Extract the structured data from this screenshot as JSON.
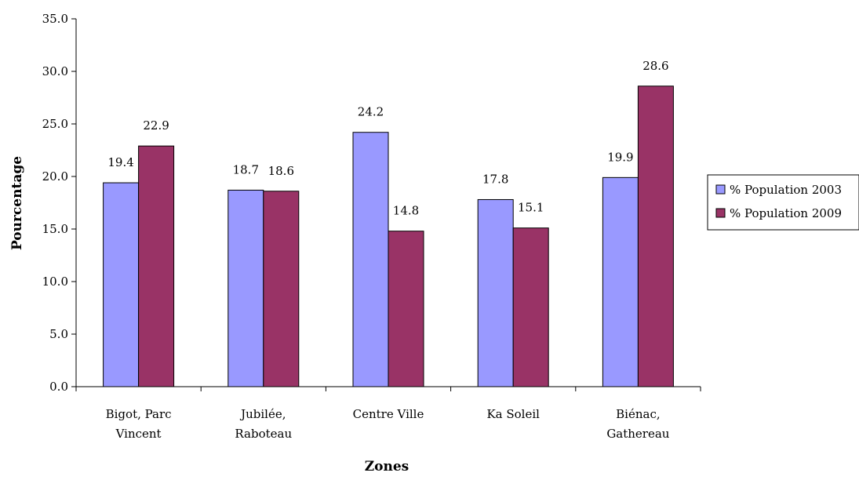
{
  "chart_data": {
    "type": "bar",
    "title": "",
    "xlabel": "Zones",
    "ylabel": "Pourcentage",
    "ylim": [
      0,
      35
    ],
    "ytick_step": 5,
    "yticks": [
      "0.0",
      "5.0",
      "10.0",
      "15.0",
      "20.0",
      "25.0",
      "30.0",
      "35.0"
    ],
    "grid": false,
    "legend_position": "right",
    "categories": [
      [
        "Bigot, Parc",
        "Vincent"
      ],
      [
        "Jubilée,",
        "Raboteau"
      ],
      [
        "Centre Ville"
      ],
      [
        "Ka Soleil"
      ],
      [
        "Biénac,",
        "Gathereau"
      ]
    ],
    "series": [
      {
        "name": "% Population 2003",
        "color": "#9999ff",
        "values": [
          19.4,
          18.7,
          24.2,
          17.8,
          19.9
        ],
        "labels": [
          "19.4",
          "18.7",
          "24.2",
          "17.8",
          "19.9"
        ]
      },
      {
        "name": "% Population 2009",
        "color": "#993366",
        "values": [
          22.9,
          18.6,
          14.8,
          15.1,
          28.6
        ],
        "labels": [
          "22.9",
          "18.6",
          "14.8",
          "15.1",
          "28.6"
        ]
      }
    ]
  }
}
